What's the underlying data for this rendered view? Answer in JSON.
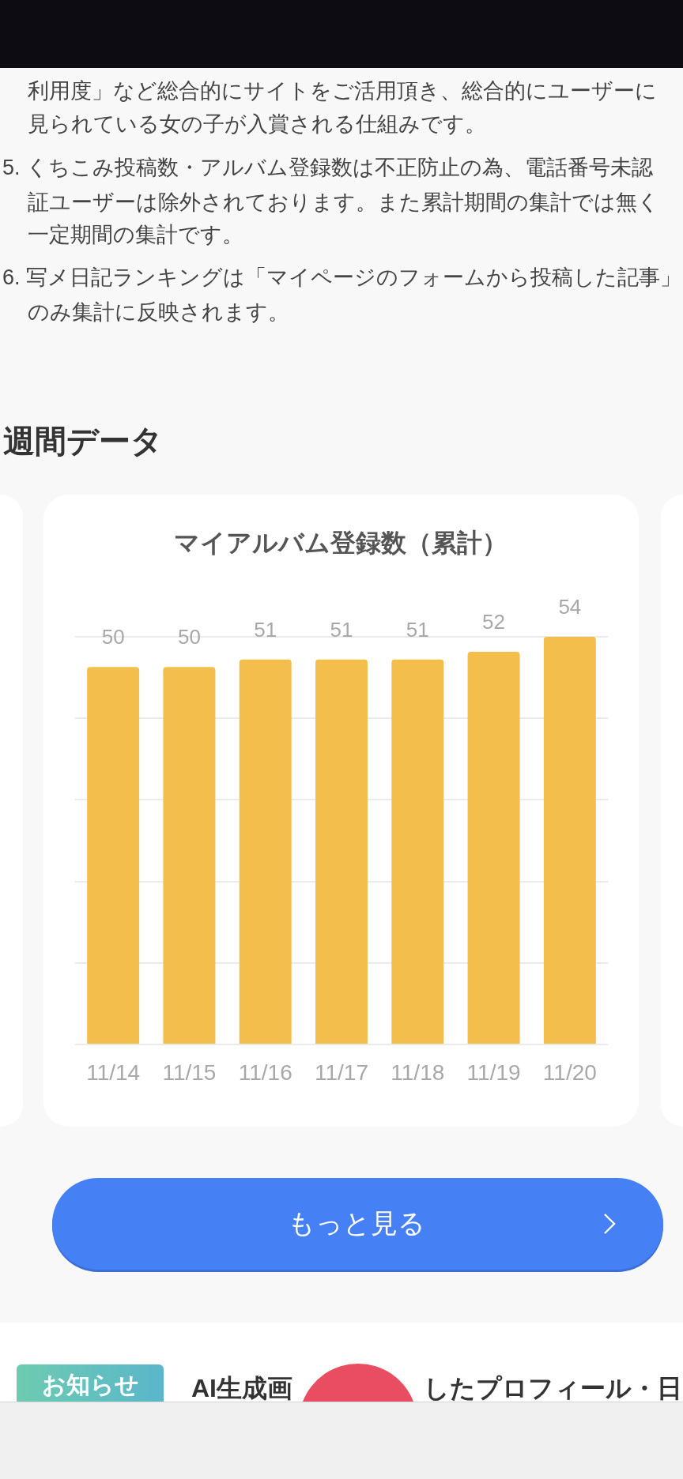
{
  "chart_data": {
    "type": "bar",
    "title": "マイアルバム登録数（累計）",
    "categories": [
      "11/14",
      "11/15",
      "11/16",
      "11/17",
      "11/18",
      "11/19",
      "11/20"
    ],
    "values": [
      50,
      50,
      51,
      51,
      51,
      52,
      54
    ],
    "color": "#f3be4b",
    "ylim": [
      0,
      54
    ],
    "yticks": [
      {
        "value": 0,
        "label": null
      },
      {
        "value": 10.8,
        "label": null
      },
      {
        "value": 21.6,
        "label": null
      },
      {
        "value": 32.4,
        "label": null
      },
      {
        "value": 43.2,
        "label": null
      },
      {
        "value": 54,
        "label": null
      }
    ],
    "grid": "y",
    "tick_labels": "x",
    "data_labels": true,
    "annotations": [
      "利用度」など総合的にサイトをご活用頂き、総合的にユーザーに",
      "見られている女の子が入賞される仕組みです。",
      "5. くちこみ投稿数・アルバム登録数は不正防止の為、電話番号未認",
      "証ユーザーは除外されております。また累計期間の集計では無く",
      "一定期間の集計です。",
      "6. 写メ日記ランキングは「マイページのフォームから投稿した記事」",
      "のみ集計に反映されます。",
      "週間データ",
      "もっと見る",
      "お知らせ",
      "AI生成画",
      "したプロフィール・日"
    ]
  }
}
